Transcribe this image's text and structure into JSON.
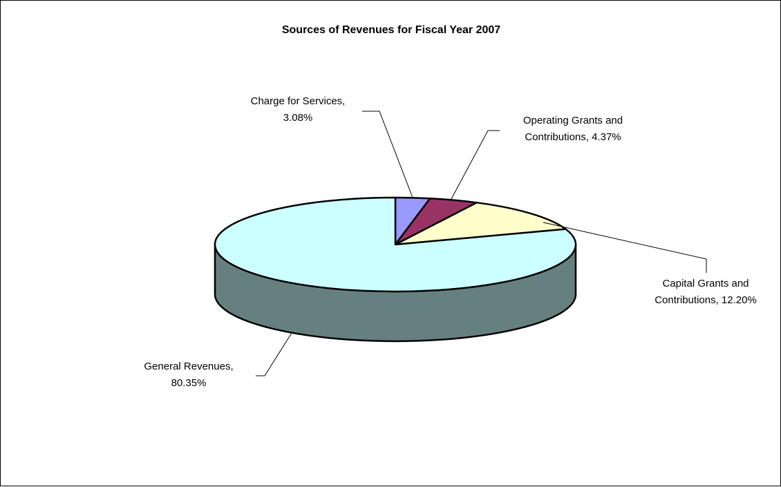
{
  "chart_data": {
    "type": "pie",
    "title": "Sources of Revenues for Fiscal Year 2007",
    "slices": [
      {
        "label_lines": [
          "Charge for Services,",
          "3.08%"
        ],
        "value": 3.08,
        "color": "#9999ff"
      },
      {
        "label_lines": [
          "Operating Grants and",
          "Contributions, 4.37%"
        ],
        "value": 4.37,
        "color": "#993366"
      },
      {
        "label_lines": [
          "Capital Grants and",
          "Contributions, 12.20%"
        ],
        "value": 12.2,
        "color": "#ffffcc"
      },
      {
        "label_lines": [
          "General Revenues,",
          "80.35%"
        ],
        "value": 80.35,
        "color": "#ccffff"
      }
    ],
    "side_color": "#668080",
    "legend": "none"
  }
}
